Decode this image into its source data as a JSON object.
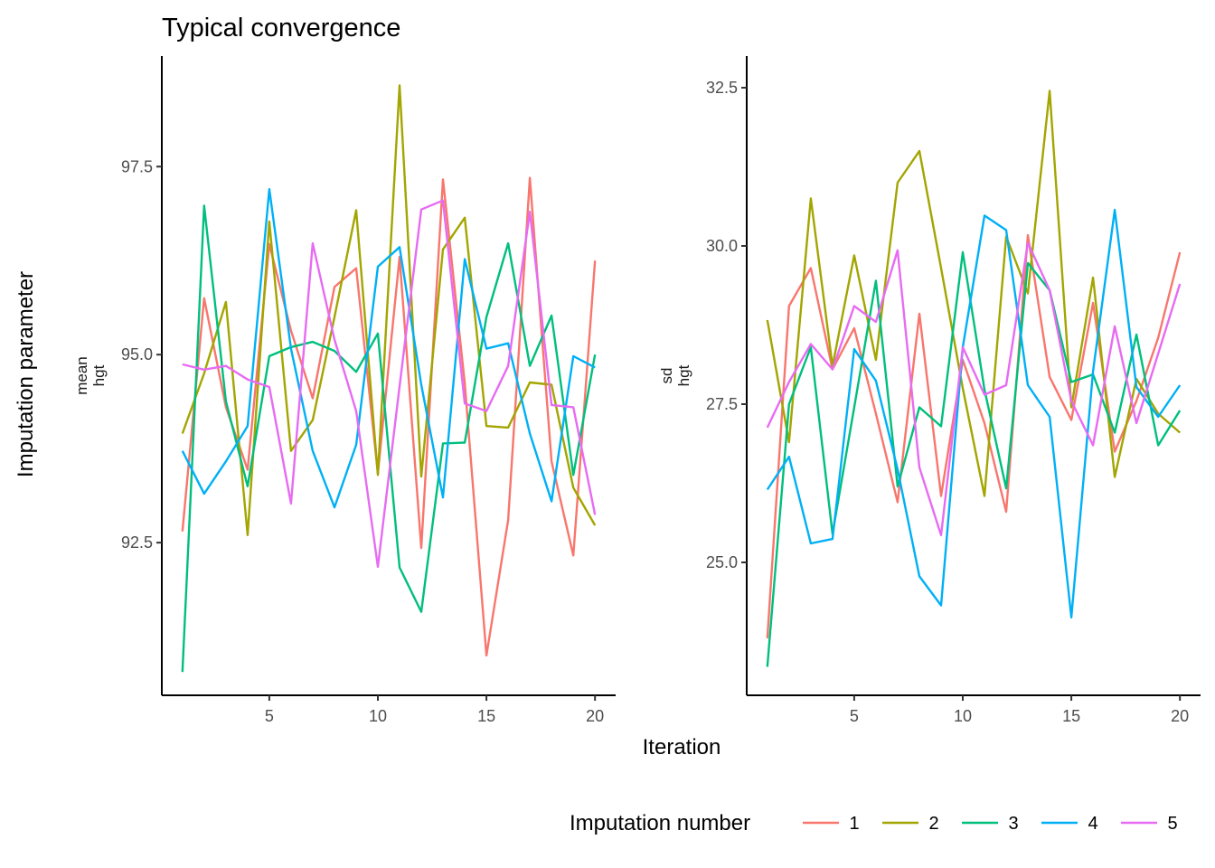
{
  "title": "Typical convergence",
  "xlabel": "Iteration",
  "ylabel": "Imputation parameter",
  "legend": {
    "title": "Imputation number",
    "placement": "bottom-right",
    "entries": [
      {
        "label": "1",
        "color": "#F8766D"
      },
      {
        "label": "2",
        "color": "#A3A500"
      },
      {
        "label": "3",
        "color": "#00BF7D"
      },
      {
        "label": "4",
        "color": "#00B0F6"
      },
      {
        "label": "5",
        "color": "#E76BF3"
      }
    ]
  },
  "chart_data": [
    {
      "type": "line",
      "panel": "mean",
      "strip_labels": [
        "mean",
        "hgt"
      ],
      "x": [
        1,
        2,
        3,
        4,
        5,
        6,
        7,
        8,
        9,
        10,
        11,
        12,
        13,
        14,
        15,
        16,
        17,
        18,
        19,
        20
      ],
      "xlim": [
        0.05,
        20.95
      ],
      "x_ticks": [
        5,
        10,
        15,
        20
      ],
      "x_tick_labels": [
        "5",
        "10",
        "15",
        "20"
      ],
      "ylim": [
        90.47,
        98.97
      ],
      "y_ticks": [
        92.5,
        95.0,
        97.5
      ],
      "y_tick_labels": [
        "92.5",
        "95.0",
        "97.5"
      ],
      "grid": false,
      "series": [
        {
          "name": "1",
          "values": [
            92.65,
            95.75,
            94.3,
            93.47,
            96.47,
            95.32,
            94.42,
            95.9,
            96.15,
            93.42,
            96.3,
            92.43,
            97.33,
            94.62,
            91.0,
            92.8,
            97.35,
            93.58,
            92.33,
            96.25
          ]
        },
        {
          "name": "2",
          "values": [
            93.95,
            94.75,
            95.7,
            92.6,
            96.77,
            93.72,
            94.13,
            95.5,
            96.92,
            93.4,
            98.58,
            93.38,
            96.4,
            96.82,
            94.05,
            94.03,
            94.63,
            94.6,
            93.23,
            92.73
          ]
        },
        {
          "name": "3",
          "values": [
            90.78,
            96.98,
            94.38,
            93.25,
            94.98,
            95.1,
            95.17,
            95.05,
            94.77,
            95.28,
            92.17,
            91.58,
            93.82,
            93.83,
            95.5,
            96.48,
            94.85,
            95.52,
            93.4,
            95.0
          ]
        },
        {
          "name": "4",
          "values": [
            93.72,
            93.15,
            93.58,
            94.05,
            97.2,
            95.08,
            93.72,
            92.97,
            93.8,
            96.17,
            96.43,
            94.6,
            93.1,
            96.27,
            95.08,
            95.15,
            93.95,
            93.05,
            94.98,
            94.83
          ]
        },
        {
          "name": "5",
          "values": [
            94.87,
            94.8,
            94.85,
            94.67,
            94.57,
            93.02,
            96.48,
            95.2,
            94.25,
            92.18,
            94.58,
            96.93,
            97.05,
            94.35,
            94.25,
            94.85,
            96.9,
            94.33,
            94.3,
            92.87
          ]
        }
      ]
    },
    {
      "type": "line",
      "panel": "sd",
      "strip_labels": [
        "sd",
        "hgt"
      ],
      "x": [
        1,
        2,
        3,
        4,
        5,
        6,
        7,
        8,
        9,
        10,
        11,
        12,
        13,
        14,
        15,
        16,
        17,
        18,
        19,
        20
      ],
      "xlim": [
        0.05,
        20.95
      ],
      "x_ticks": [
        5,
        10,
        15,
        20
      ],
      "x_tick_labels": [
        "5",
        "10",
        "15",
        "20"
      ],
      "ylim": [
        22.9,
        33.0
      ],
      "y_ticks": [
        25.0,
        27.5,
        30.0,
        32.5
      ],
      "y_tick_labels": [
        "25.0",
        "27.5",
        "30.0",
        "32.5"
      ],
      "grid": false,
      "series": [
        {
          "name": "1",
          "values": [
            23.8,
            29.05,
            29.65,
            28.05,
            28.7,
            27.35,
            25.95,
            28.93,
            26.05,
            28.2,
            27.2,
            25.8,
            30.17,
            27.93,
            27.25,
            29.1,
            26.75,
            27.55,
            28.55,
            29.9
          ]
        },
        {
          "name": "2",
          "values": [
            28.83,
            26.9,
            30.75,
            28.1,
            29.85,
            28.2,
            31.0,
            31.5,
            29.65,
            27.75,
            26.05,
            30.15,
            29.25,
            32.45,
            27.45,
            29.5,
            26.35,
            27.9,
            27.35,
            27.05
          ]
        },
        {
          "name": "3",
          "values": [
            23.35,
            27.5,
            28.4,
            25.45,
            27.45,
            29.45,
            26.2,
            27.45,
            27.15,
            29.9,
            27.73,
            26.17,
            29.73,
            29.3,
            27.85,
            27.97,
            27.05,
            28.6,
            26.85,
            27.4
          ]
        },
        {
          "name": "4",
          "values": [
            26.15,
            26.67,
            25.3,
            25.37,
            28.37,
            27.87,
            26.47,
            24.78,
            24.32,
            28.4,
            30.48,
            30.25,
            27.8,
            27.3,
            24.13,
            28.02,
            30.57,
            27.77,
            27.3,
            27.8
          ]
        },
        {
          "name": "5",
          "values": [
            27.13,
            27.85,
            28.45,
            28.05,
            29.05,
            28.8,
            29.93,
            26.5,
            25.43,
            28.4,
            27.65,
            27.8,
            30.05,
            29.3,
            27.55,
            26.85,
            28.73,
            27.2,
            28.3,
            29.4
          ]
        }
      ]
    }
  ]
}
